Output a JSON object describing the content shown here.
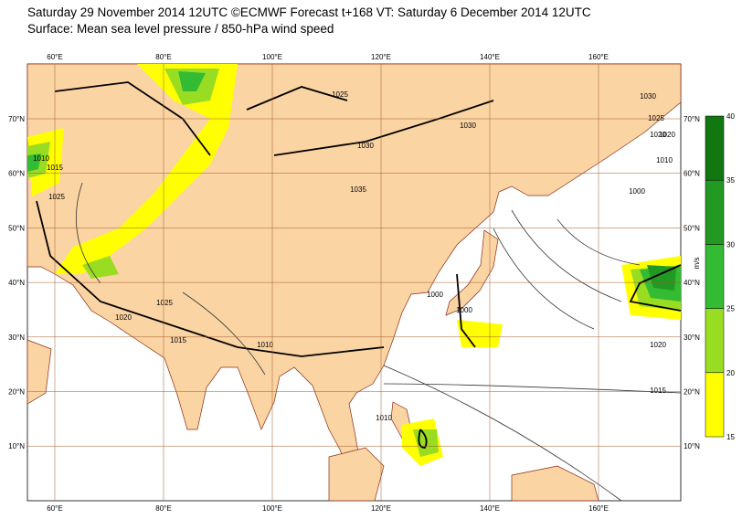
{
  "header": {
    "title_line1": "Saturday 29 November 2014 12UTC ©ECMWF Forecast t+168 VT: Saturday 6 December 2014 12UTC",
    "title_line2": "Surface: Mean sea level pressure / 850-hPa wind speed"
  },
  "map": {
    "lon_labels": [
      "60°E",
      "80°E",
      "100°E",
      "120°E",
      "140°E",
      "160°E"
    ],
    "lat_labels": [
      "70°N",
      "60°N",
      "50°N",
      "40°N",
      "30°N",
      "20°N",
      "10°N"
    ],
    "isobar_labels": [
      "1025",
      "1030",
      "1030",
      "1035",
      "1025",
      "1020",
      "1015",
      "1010",
      "1025",
      "1000",
      "1000",
      "1015",
      "1020",
      "1030",
      "1025",
      "1020",
      "1010",
      "1000",
      "1020",
      "1015",
      "1010",
      "1010"
    ]
  },
  "colorbar": {
    "levels": [
      15,
      20,
      25,
      30,
      35,
      40
    ],
    "colors": [
      "#ffff00",
      "#99dd22",
      "#33bb33",
      "#229922",
      "#117711"
    ],
    "unit": "m/s"
  }
}
